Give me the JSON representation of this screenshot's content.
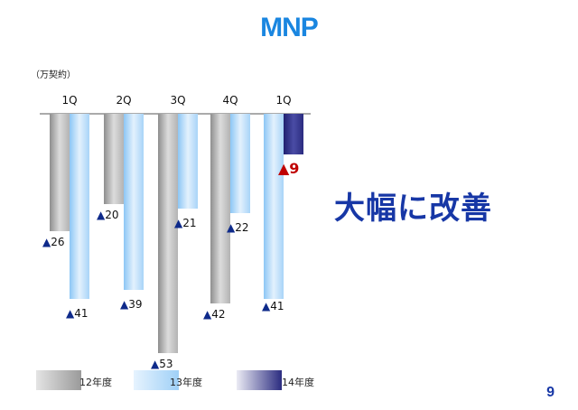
{
  "page": {
    "title": "MNP",
    "unit_label": "（万契約）",
    "headline": "大幅に改善",
    "page_number": "9"
  },
  "colors": {
    "series_12": "#b9b9b9",
    "series_13": "#a8d4f8",
    "series_14": "#2b2c80",
    "title": "#1a86e0",
    "headline": "#1737a6",
    "highlight_label": "#c00000"
  },
  "chart_data": {
    "type": "bar",
    "categories": [
      "1Q",
      "2Q",
      "3Q",
      "4Q",
      "1Q"
    ],
    "ylim": [
      -60,
      0
    ],
    "series": [
      {
        "name": "12年度",
        "values": [
          -26,
          -20,
          -53,
          -42,
          null
        ],
        "labels": [
          "▲26",
          "▲20",
          "▲53",
          "▲42",
          ""
        ]
      },
      {
        "name": "13年度",
        "values": [
          -41,
          -39,
          -21,
          -22,
          -41
        ],
        "labels": [
          "▲41",
          "▲39",
          "▲21",
          "▲22",
          "▲41"
        ]
      },
      {
        "name": "14年度",
        "values": [
          null,
          null,
          null,
          null,
          -9
        ],
        "labels": [
          "",
          "",
          "",
          "",
          "▲9"
        ]
      }
    ],
    "legend": {
      "position": "bottom"
    }
  }
}
